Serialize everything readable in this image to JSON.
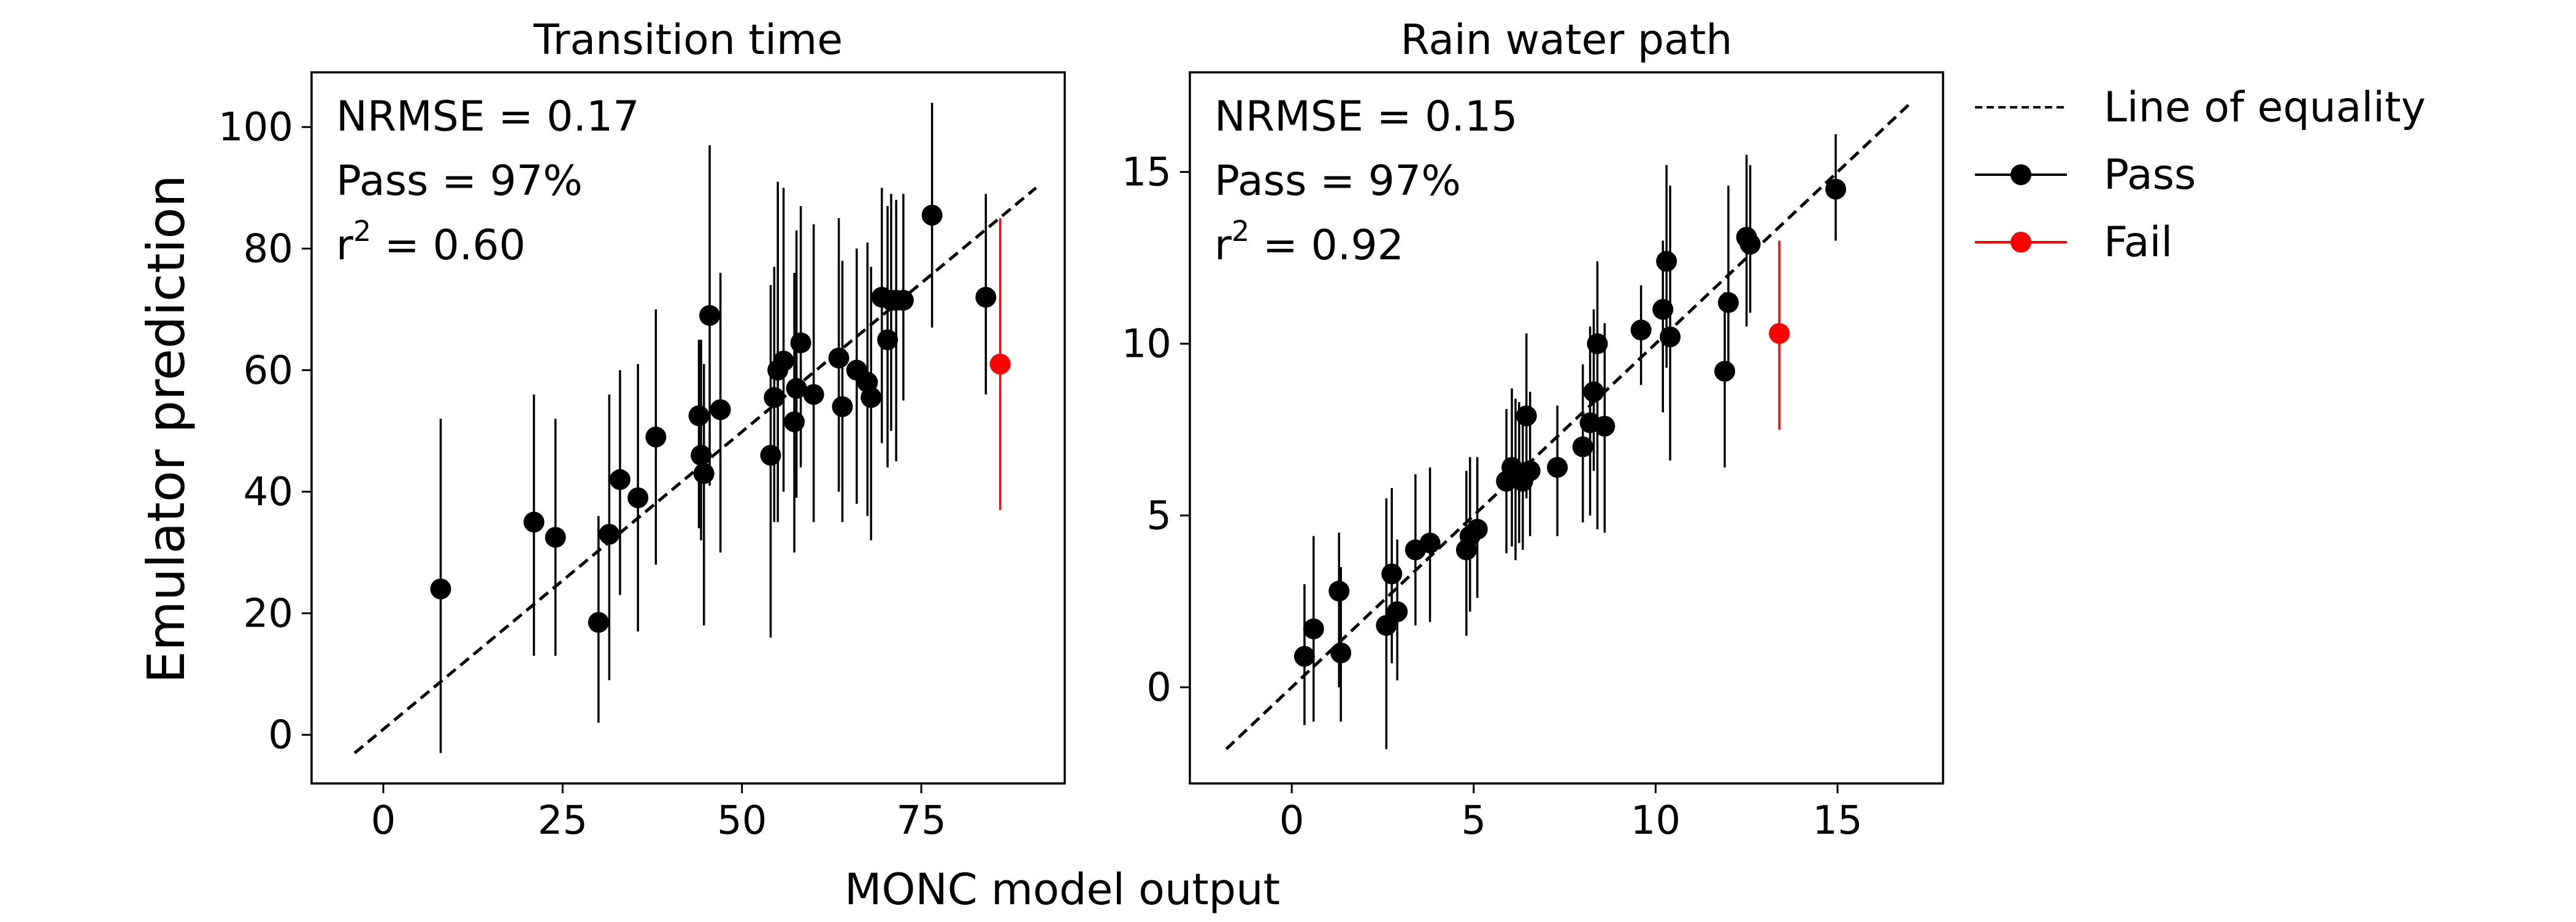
{
  "figure": {
    "ylabel": "Emulator prediction",
    "xlabel": "MONC model output",
    "colors": {
      "pass": "#000000",
      "fail": "#ff0000"
    }
  },
  "legend": {
    "placement": "right, outside axes",
    "items": [
      {
        "key": "equality",
        "label": "Line of equality",
        "style": "dashed-line"
      },
      {
        "key": "pass",
        "label": "Pass",
        "style": "marker-errorbar",
        "color": "#000000"
      },
      {
        "key": "fail",
        "label": "Fail",
        "style": "marker-errorbar",
        "color": "#ff0000"
      }
    ]
  },
  "chart_data": [
    {
      "type": "scatter",
      "title": "Transition time",
      "stats": {
        "nrmse": "NRMSE = 0.17",
        "pass": "Pass = 97%",
        "r2_prefix": "r",
        "r2_sup": "2",
        "r2_suffix": " = 0.60"
      },
      "xlim": [
        -10,
        95
      ],
      "ylim": [
        -8,
        109
      ],
      "xticks": [
        0,
        25,
        50,
        75
      ],
      "yticks": [
        0,
        20,
        40,
        60,
        80,
        100
      ],
      "grid": false,
      "equality_line": [
        [
          -4,
          -3
        ],
        [
          91,
          90
        ]
      ],
      "series": [
        {
          "name": "Pass",
          "color": "#000000",
          "points": [
            {
              "x": 8,
              "y": 24,
              "lo": -3,
              "hi": 52
            },
            {
              "x": 21,
              "y": 35,
              "lo": 13,
              "hi": 56
            },
            {
              "x": 24,
              "y": 32.5,
              "lo": 13,
              "hi": 52
            },
            {
              "x": 30,
              "y": 18.5,
              "lo": 2,
              "hi": 36
            },
            {
              "x": 31.5,
              "y": 33,
              "lo": 9,
              "hi": 56
            },
            {
              "x": 33,
              "y": 42,
              "lo": 23,
              "hi": 60
            },
            {
              "x": 35.5,
              "y": 39,
              "lo": 17,
              "hi": 61
            },
            {
              "x": 38,
              "y": 49,
              "lo": 28,
              "hi": 70
            },
            {
              "x": 44,
              "y": 52.5,
              "lo": 34,
              "hi": 65
            },
            {
              "x": 44.3,
              "y": 46,
              "lo": 32,
              "hi": 65
            },
            {
              "x": 44.7,
              "y": 43,
              "lo": 18,
              "hi": 61
            },
            {
              "x": 45.5,
              "y": 69,
              "lo": 41,
              "hi": 97
            },
            {
              "x": 47,
              "y": 53.5,
              "lo": 30,
              "hi": 76
            },
            {
              "x": 54,
              "y": 46,
              "lo": 16,
              "hi": 74
            },
            {
              "x": 54.5,
              "y": 55.5,
              "lo": 35,
              "hi": 77
            },
            {
              "x": 55,
              "y": 60,
              "lo": 35,
              "hi": 91
            },
            {
              "x": 55.8,
              "y": 61.5,
              "lo": 40,
              "hi": 90
            },
            {
              "x": 57.3,
              "y": 51.5,
              "lo": 30,
              "hi": 76
            },
            {
              "x": 57.6,
              "y": 57,
              "lo": 39,
              "hi": 83
            },
            {
              "x": 58.2,
              "y": 64.5,
              "lo": 44,
              "hi": 87
            },
            {
              "x": 60,
              "y": 56,
              "lo": 35,
              "hi": 84
            },
            {
              "x": 63.5,
              "y": 62,
              "lo": 40,
              "hi": 85
            },
            {
              "x": 64,
              "y": 54,
              "lo": 35,
              "hi": 78
            },
            {
              "x": 66,
              "y": 60,
              "lo": 38,
              "hi": 80
            },
            {
              "x": 67.5,
              "y": 58,
              "lo": 36,
              "hi": 81
            },
            {
              "x": 68,
              "y": 55.5,
              "lo": 32,
              "hi": 77
            },
            {
              "x": 69.5,
              "y": 72,
              "lo": 48,
              "hi": 90
            },
            {
              "x": 70.3,
              "y": 65,
              "lo": 44,
              "hi": 87
            },
            {
              "x": 70.8,
              "y": 71.5,
              "lo": 50,
              "hi": 89
            },
            {
              "x": 71.5,
              "y": 71.5,
              "lo": 45,
              "hi": 88
            },
            {
              "x": 72.5,
              "y": 71.5,
              "lo": 55,
              "hi": 89
            },
            {
              "x": 76.5,
              "y": 85.5,
              "lo": 67,
              "hi": 104
            },
            {
              "x": 84,
              "y": 72,
              "lo": 56,
              "hi": 89
            }
          ]
        },
        {
          "name": "Fail",
          "color": "#ff0000",
          "points": [
            {
              "x": 86,
              "y": 61,
              "lo": 37,
              "hi": 85
            }
          ]
        }
      ]
    },
    {
      "type": "scatter",
      "title": "Rain water path",
      "stats": {
        "nrmse": "NRMSE = 0.15",
        "pass": "Pass = 97%",
        "r2_prefix": "r",
        "r2_sup": "2",
        "r2_suffix": " = 0.92"
      },
      "xlim": [
        -2.8,
        17.9
      ],
      "ylim": [
        -2.8,
        17.9
      ],
      "xticks": [
        0,
        5,
        10,
        15
      ],
      "yticks": [
        0,
        5,
        10,
        15
      ],
      "grid": false,
      "equality_line": [
        [
          -1.8,
          -1.8
        ],
        [
          17.0,
          17.0
        ]
      ],
      "series": [
        {
          "name": "Pass",
          "color": "#000000",
          "points": [
            {
              "x": 0.35,
              "y": 0.9,
              "lo": -1.1,
              "hi": 3.0
            },
            {
              "x": 0.6,
              "y": 1.7,
              "lo": -1.0,
              "hi": 4.4
            },
            {
              "x": 1.3,
              "y": 2.8,
              "lo": 0.0,
              "hi": 4.5
            },
            {
              "x": 1.35,
              "y": 1.0,
              "lo": -1.0,
              "hi": 3.5
            },
            {
              "x": 2.6,
              "y": 1.8,
              "lo": -1.8,
              "hi": 5.5
            },
            {
              "x": 2.75,
              "y": 3.3,
              "lo": 0.7,
              "hi": 5.8
            },
            {
              "x": 2.9,
              "y": 2.2,
              "lo": 0.2,
              "hi": 4.3
            },
            {
              "x": 3.4,
              "y": 4.0,
              "lo": 1.8,
              "hi": 6.2
            },
            {
              "x": 3.8,
              "y": 4.2,
              "lo": 1.9,
              "hi": 6.4
            },
            {
              "x": 4.8,
              "y": 4.0,
              "lo": 1.5,
              "hi": 6.3
            },
            {
              "x": 4.9,
              "y": 4.4,
              "lo": 2.2,
              "hi": 6.7
            },
            {
              "x": 5.1,
              "y": 4.6,
              "lo": 2.6,
              "hi": 6.7
            },
            {
              "x": 5.9,
              "y": 6.0,
              "lo": 3.9,
              "hi": 8.1
            },
            {
              "x": 6.05,
              "y": 6.4,
              "lo": 4.1,
              "hi": 8.7
            },
            {
              "x": 6.15,
              "y": 6.1,
              "lo": 3.7,
              "hi": 8.4
            },
            {
              "x": 6.25,
              "y": 6.2,
              "lo": 4.2,
              "hi": 8.3
            },
            {
              "x": 6.35,
              "y": 6.0,
              "lo": 4.0,
              "hi": 8.0
            },
            {
              "x": 6.45,
              "y": 7.9,
              "lo": 5.5,
              "hi": 10.3
            },
            {
              "x": 6.55,
              "y": 6.3,
              "lo": 4.4,
              "hi": 8.6
            },
            {
              "x": 7.3,
              "y": 6.4,
              "lo": 4.4,
              "hi": 8.2
            },
            {
              "x": 8.0,
              "y": 7.0,
              "lo": 4.8,
              "hi": 9.4
            },
            {
              "x": 8.2,
              "y": 7.7,
              "lo": 5.0,
              "hi": 10.5
            },
            {
              "x": 8.3,
              "y": 8.6,
              "lo": 6.3,
              "hi": 11.0
            },
            {
              "x": 8.4,
              "y": 10.0,
              "lo": 4.6,
              "hi": 12.4
            },
            {
              "x": 8.6,
              "y": 7.6,
              "lo": 4.5,
              "hi": 10.6
            },
            {
              "x": 9.6,
              "y": 10.4,
              "lo": 8.8,
              "hi": 11.7
            },
            {
              "x": 10.2,
              "y": 11.0,
              "lo": 8.0,
              "hi": 13.0
            },
            {
              "x": 10.3,
              "y": 12.4,
              "lo": 9.3,
              "hi": 15.2
            },
            {
              "x": 10.4,
              "y": 10.2,
              "lo": 6.6,
              "hi": 14.6
            },
            {
              "x": 11.9,
              "y": 9.2,
              "lo": 6.4,
              "hi": 11.5
            },
            {
              "x": 12.0,
              "y": 11.2,
              "lo": 9.2,
              "hi": 14.6
            },
            {
              "x": 12.5,
              "y": 13.1,
              "lo": 10.5,
              "hi": 15.5
            },
            {
              "x": 12.6,
              "y": 12.9,
              "lo": 10.9,
              "hi": 15.2
            },
            {
              "x": 14.95,
              "y": 14.5,
              "lo": 13.0,
              "hi": 16.1
            }
          ]
        },
        {
          "name": "Fail",
          "color": "#ff0000",
          "points": [
            {
              "x": 13.4,
              "y": 10.3,
              "lo": 7.5,
              "hi": 13.0
            }
          ]
        }
      ]
    }
  ]
}
